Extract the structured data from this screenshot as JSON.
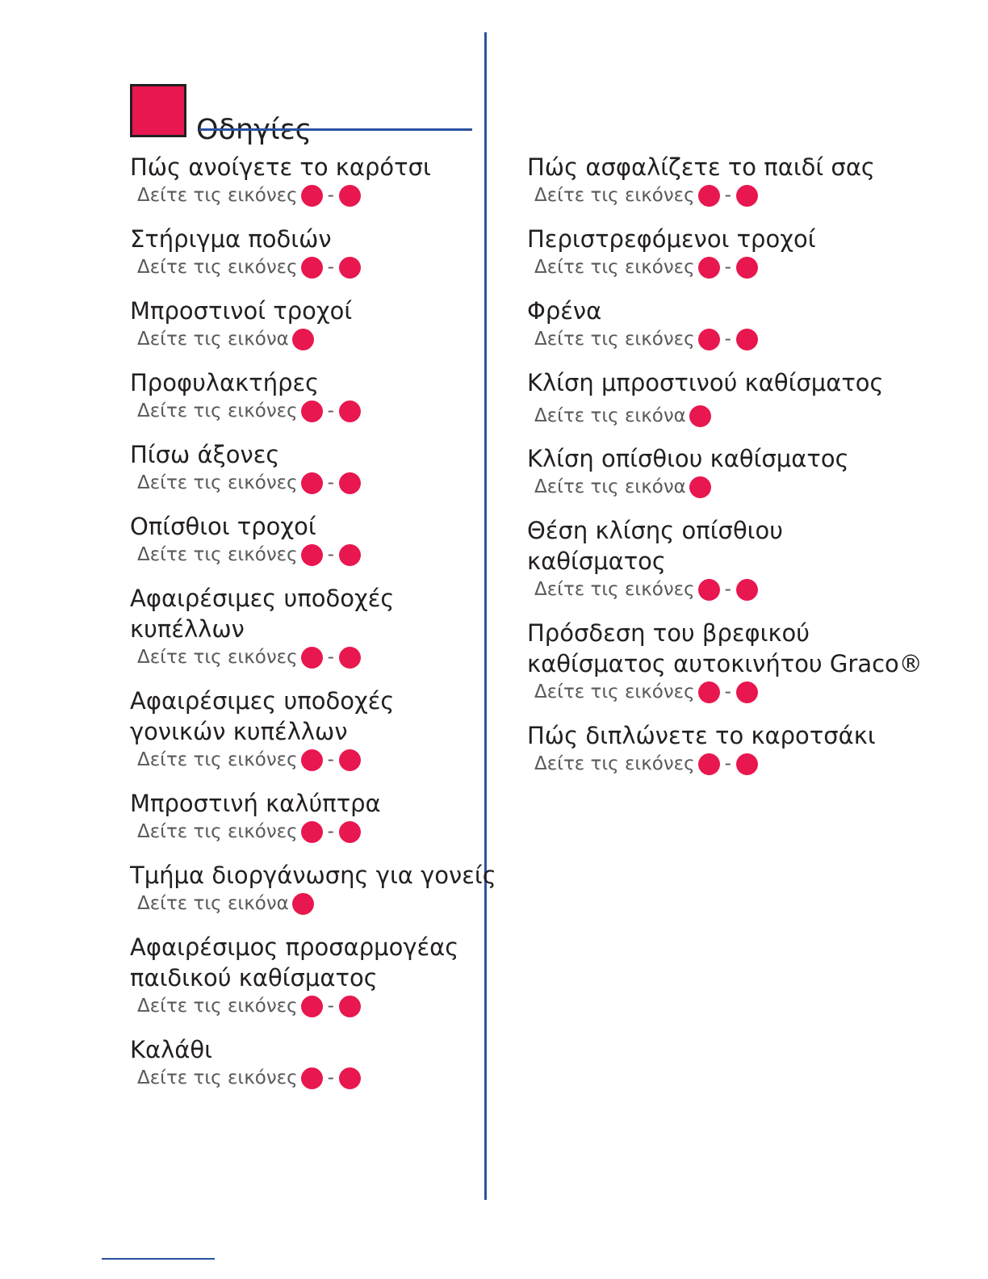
{
  "header": {
    "title": "Οδηγίες",
    "accent_color": "#e8174f",
    "rule_color": "#2a52a0"
  },
  "left_column": [
    {
      "title_lines": [
        "Πώς ανοίγετε το καρότσι"
      ],
      "ref_text": "Δείτε τις εικόνες",
      "range": true
    },
    {
      "title_lines": [
        "Στήριγμα ποδιών"
      ],
      "ref_text": "Δείτε τις εικόνες",
      "range": true
    },
    {
      "title_lines": [
        "Μπροστινοί τροχοί"
      ],
      "ref_text": "Δείτε τις εικόνα",
      "range": false
    },
    {
      "title_lines": [
        "Προφυλακτήρες"
      ],
      "ref_text": "Δείτε τις εικόνες",
      "range": true
    },
    {
      "title_lines": [
        "Πίσω άξονες"
      ],
      "ref_text": "Δείτε τις εικόνες",
      "range": true
    },
    {
      "title_lines": [
        "Οπίσθιοι τροχοί"
      ],
      "ref_text": "Δείτε τις εικόνες",
      "range": true
    },
    {
      "title_lines": [
        "Αφαιρέσιμες υποδοχές",
        "κυπέλλων"
      ],
      "ref_text": "Δείτε τις εικόνες",
      "range": true
    },
    {
      "title_lines": [
        "Αφαιρέσιμες υποδοχές",
        "γονικών κυπέλλων"
      ],
      "ref_text": "Δείτε τις εικόνες",
      "range": true
    },
    {
      "title_lines": [
        "Μπροστινή καλύπτρα"
      ],
      "ref_text": "Δείτε τις εικόνες",
      "range": true
    },
    {
      "title_lines": [
        "Τμήμα διοργάνωσης για γονείς"
      ],
      "ref_text": "Δείτε τις εικόνα",
      "range": false
    },
    {
      "title_lines": [
        "Αφαιρέσιμος προσαρμογέας",
        "παιδικού καθίσματος"
      ],
      "ref_text": "Δείτε τις εικόνες",
      "range": true
    },
    {
      "title_lines": [
        "Καλάθι"
      ],
      "ref_text": "Δείτε τις εικόνες",
      "range": true
    }
  ],
  "right_column": [
    {
      "title_lines": [
        "Πώς ασφαλίζετε το παιδί σας"
      ],
      "ref_text": "Δείτε τις εικόνες",
      "range": true
    },
    {
      "title_lines": [
        "Περιστρεφόμενοι τροχοί"
      ],
      "ref_text": "Δείτε τις εικόνες",
      "range": true
    },
    {
      "title_lines": [
        "Φρένα"
      ],
      "ref_text": "Δείτε τις εικόνες",
      "range": true
    },
    {
      "title_lines": [
        "Κλίση μπροστινού καθίσματος"
      ],
      "ref_text": "Δείτε τις εικόνα",
      "range": false
    },
    {
      "title_lines": [
        "Κλίση οπίσθιου καθίσματος"
      ],
      "ref_text": "Δείτε τις εικόνα",
      "range": false
    },
    {
      "title_lines": [
        "Θέση κλίσης οπίσθιου",
        "καθίσματος"
      ],
      "ref_text": "Δείτε τις εικόνες",
      "range": true
    },
    {
      "title_lines": [
        "Πρόσδεση του βρεφικού",
        "καθίσματος αυτοκινήτου Graco®"
      ],
      "ref_text": "Δείτε τις εικόνες",
      "range": true
    },
    {
      "title_lines": [
        "Πώς διπλώνετε το καροτσάκι"
      ],
      "ref_text": "Δείτε τις εικόνες",
      "range": true
    }
  ],
  "dash_text": "-"
}
